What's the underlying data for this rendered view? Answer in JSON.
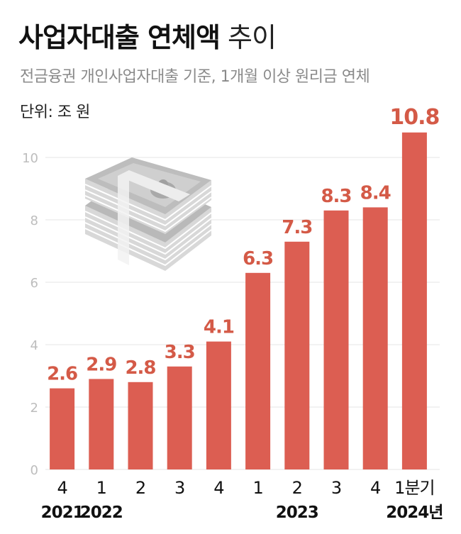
{
  "header": {
    "title_bold": "사업자대출 연체액",
    "title_light": "추이",
    "subtitle": "전금융권 개인사업자대출 기준, 1개월 이상 원리금 연체",
    "unit": "단위: 조 원"
  },
  "colors": {
    "bar": "#dc5e52",
    "label": "#d45a47",
    "grid": "#e4e4e4",
    "ytick": "#bdbdbd",
    "axis_text": "#111111"
  },
  "chart_data": {
    "type": "bar",
    "categories": [
      "4",
      "1",
      "2",
      "3",
      "4",
      "1",
      "2",
      "3",
      "4",
      "1분기"
    ],
    "years": [
      {
        "label": "2021",
        "index": 0
      },
      {
        "label": "2022",
        "index": 1
      },
      {
        "label": "2023",
        "index": 6
      },
      {
        "label": "2024년",
        "index": 9
      }
    ],
    "values": [
      2.6,
      2.9,
      2.8,
      3.3,
      4.1,
      6.3,
      7.3,
      8.3,
      8.4,
      10.8
    ],
    "data_labels": [
      "2.6",
      "2.9",
      "2.8",
      "3.3",
      "4.1",
      "6.3",
      "7.3",
      "8.3",
      "8.4",
      "10.8"
    ],
    "yticks": [
      0,
      2,
      4,
      6,
      8,
      10
    ],
    "ylim": [
      0,
      11
    ],
    "grid": true,
    "xlabel": "",
    "ylabel": ""
  }
}
